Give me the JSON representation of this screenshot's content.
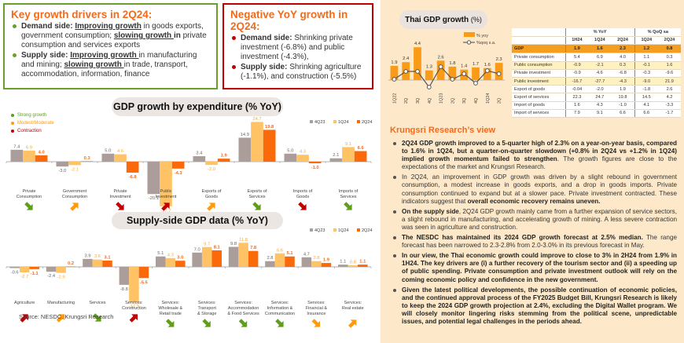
{
  "key_drivers": {
    "title": "Key growth drivers in 2Q24:",
    "items": [
      {
        "segments": [
          {
            "t": "Demand side: ",
            "s": "b"
          },
          {
            "t": "Improving growth",
            "s": "u"
          },
          {
            "t": " in goods exports, government consumption; ",
            "s": ""
          },
          {
            "t": "slowing growth ",
            "s": "u"
          },
          {
            "t": "in",
            "s": "b"
          },
          {
            "t": " private consumption and services exports",
            "s": ""
          }
        ]
      },
      {
        "segments": [
          {
            "t": "Supply side: ",
            "s": "b"
          },
          {
            "t": "Improving growth ",
            "s": "u"
          },
          {
            "t": "in manufacturing and mining; ",
            "s": ""
          },
          {
            "t": "slowing growth ",
            "s": "u"
          },
          {
            "t": "in trade, transport, accommodation, information, finance",
            "s": ""
          }
        ]
      }
    ]
  },
  "negative_growth": {
    "title": "Negative YoY growth in 2Q24:",
    "items": [
      {
        "segments": [
          {
            "t": "Demand side:",
            "s": "b"
          },
          {
            "t": " Shrinking private investment (-6.8%) and public investment (-4.3%),",
            "s": ""
          }
        ]
      },
      {
        "segments": [
          {
            "t": "Supply side:",
            "s": "b"
          },
          {
            "t": " Shrinking agriculture (-1.1%), and construction (-5.5%)",
            "s": ""
          }
        ]
      }
    ]
  },
  "colors": {
    "q4q23": "#ab9d99",
    "q1q24": "#ffc265",
    "q2q24": "#fa6a0a",
    "strong": "#5f9e16",
    "moderate": "#ff9a0d",
    "contraction": "#c00000",
    "gdp_bar": "#f99b16",
    "qoq_line": "#555555"
  },
  "momentum_legend": [
    {
      "label": "Strong growth",
      "level": "strong"
    },
    {
      "label": "Modest/Moderate",
      "level": "moderate"
    },
    {
      "label": "Contraction",
      "level": "contraction"
    }
  ],
  "source": "Source: NESDC, Krungsri Research",
  "chart_data": [
    {
      "type": "bar",
      "title": "GDP growth by expenditure (% YoY)",
      "legend_placement": "top-right",
      "series_names": [
        "4Q23",
        "1Q24",
        "2Q24"
      ],
      "categories": [
        "Private Consumption",
        "Government Consumption",
        "Private Investment",
        "Public Investment",
        "Exports of Goods",
        "Exports of Services",
        "Imports of Goods",
        "Imports of Services"
      ],
      "category_lines": [
        [
          "Private",
          "Consumption"
        ],
        [
          "Government",
          "Consumption"
        ],
        [
          "Private",
          "Investment"
        ],
        [
          "Public",
          "Investment"
        ],
        [
          "Exports of",
          "Goods"
        ],
        [
          "Exports of",
          "Services"
        ],
        [
          "Imports of",
          "Goods"
        ],
        [
          "Imports of",
          "Services"
        ]
      ],
      "series": [
        {
          "name": "4Q23",
          "values": [
            7.4,
            -3.0,
            5.0,
            -20.1,
            3.4,
            14.9,
            5.0,
            2.1
          ]
        },
        {
          "name": "1Q24",
          "values": [
            6.9,
            -2.1,
            4.6,
            -27.7,
            -2.0,
            24.7,
            4.3,
            9.1
          ]
        },
        {
          "name": "2Q24",
          "values": [
            4.0,
            0.3,
            -6.8,
            -4.3,
            1.9,
            19.8,
            -1.0,
            6.6
          ]
        }
      ],
      "hidden_labels": [
        [
          false,
          false,
          false
        ],
        [
          false,
          false,
          false
        ],
        [
          false,
          false,
          false
        ],
        [
          false,
          false,
          false
        ],
        [
          false,
          false,
          false
        ],
        [
          false,
          false,
          false
        ],
        [
          false,
          false,
          false
        ],
        [
          false,
          false,
          false
        ]
      ],
      "momentum": [
        {
          "level": "strong",
          "direction": "down"
        },
        {
          "level": "moderate",
          "direction": "up"
        },
        {
          "level": "contraction",
          "direction": "down"
        },
        {
          "level": "contraction",
          "direction": "up"
        },
        {
          "level": "moderate",
          "direction": "up"
        },
        {
          "level": "strong",
          "direction": "down"
        },
        {
          "level": "contraction",
          "direction": "down"
        },
        {
          "level": "strong",
          "direction": "down"
        }
      ],
      "ylim": [
        -28,
        25
      ]
    },
    {
      "type": "bar",
      "title": "Supply-side GDP data (% YoY)",
      "legend_placement": "top-right",
      "series_names": [
        "4Q23",
        "1Q24",
        "2Q24"
      ],
      "categories": [
        "Agriculture",
        "Manufacturing",
        "Services",
        "Services: Construction",
        "Services: Wholesale & Retail trade",
        "Services: Transport & Storage",
        "Services: Accommodation & Food Services",
        "Services: Information & Communication",
        "Services: Financial & Insurance",
        "Services: Real estate"
      ],
      "category_lines": [
        [
          "Agriculture"
        ],
        [
          "Manufacturing"
        ],
        [
          "Services"
        ],
        [
          "Services:",
          "Construction"
        ],
        [
          "Services:",
          "Wholesale &",
          "Retail trade"
        ],
        [
          "Services:",
          "Transport",
          "& Storage"
        ],
        [
          "Services:",
          "Accommodation",
          "& Food Services"
        ],
        [
          "Services:",
          "Information &",
          "Communication"
        ],
        [
          "Services:",
          "Financial &",
          "Insurance"
        ],
        [
          "Services:",
          "Real estate"
        ]
      ],
      "series": [
        {
          "name": "4Q23",
          "values": [
            -0.6,
            -2.4,
            3.9,
            -8.8,
            5.1,
            7.0,
            9.8,
            2.8,
            4.7,
            1.1
          ]
        },
        {
          "name": "1Q24",
          "values": [
            -2.7,
            -2.9,
            3.6,
            -17.3,
            4.3,
            9.7,
            11.8,
            6.6,
            2.8,
            0.8
          ]
        },
        {
          "name": "2Q24",
          "values": [
            -1.1,
            0.2,
            3.1,
            -5.5,
            3.0,
            8.1,
            7.8,
            5.1,
            1.9,
            1.1
          ]
        }
      ],
      "momentum": [
        {
          "level": "contraction",
          "direction": "up"
        },
        {
          "level": "moderate",
          "direction": "up"
        },
        {
          "level": "strong",
          "direction": "down"
        },
        {
          "level": "contraction",
          "direction": "up"
        },
        {
          "level": "strong",
          "direction": "down"
        },
        {
          "level": "strong",
          "direction": "down"
        },
        {
          "level": "strong",
          "direction": "down"
        },
        {
          "level": "strong",
          "direction": "down"
        },
        {
          "level": "moderate",
          "direction": "down"
        },
        {
          "level": "moderate",
          "direction": "up"
        }
      ],
      "ylim": [
        -18,
        12
      ]
    },
    {
      "type": "bar+line",
      "title": "Thai GDP growth",
      "title_unit": "(%)",
      "legend_placement": "top-right",
      "categories": [
        "1Q22",
        "2Q",
        "3Q",
        "4Q",
        "1Q23",
        "2Q",
        "3Q",
        "4Q",
        "1Q24",
        "2Q"
      ],
      "series": [
        {
          "name": "% yoy",
          "type": "bar",
          "values": [
            1.9,
            2.4,
            4.4,
            1.3,
            2.6,
            1.8,
            1.4,
            1.7,
            1.6,
            2.3
          ]
        },
        {
          "name": "%qoq s.a.",
          "type": "line",
          "values": [
            0.1,
            1.1,
            1.1,
            -0.9,
            1.7,
            0.1,
            0.8,
            -0.4,
            1.2,
            0.8
          ]
        }
      ],
      "ylim": [
        -1.5,
        5
      ]
    },
    {
      "type": "table",
      "group_headers": [
        "% YoY",
        "% QoQ sa"
      ],
      "columns": [
        "1H24",
        "1Q24",
        "2Q24",
        "1Q24",
        "2Q24"
      ],
      "rows": [
        {
          "label": "GDP",
          "values": [
            "1.9",
            "1.6",
            "2.3",
            "1.2",
            "0.8"
          ],
          "style": "gdp"
        },
        {
          "label": "Private consumption",
          "values": [
            "5.4",
            "6.9",
            "4.0",
            "1.1",
            "0.3"
          ],
          "style": ""
        },
        {
          "label": "Public consumption",
          "values": [
            "-0.9",
            "-2.1",
            "0.3",
            "-0.1",
            "1.6"
          ],
          "style": "alt"
        },
        {
          "label": "Private investment",
          "values": [
            "-0.9",
            "4.6",
            "-6.8",
            "-0.3",
            "-9.6"
          ],
          "style": ""
        },
        {
          "label": "Public investment",
          "values": [
            "-16.7",
            "-27.7",
            "-4.3",
            "-9.0",
            "21.9"
          ],
          "style": "alt"
        },
        {
          "label": "Export of goods",
          "values": [
            "-0.04",
            "-2.0",
            "1.9",
            "-1.8",
            "2.6"
          ],
          "style": ""
        },
        {
          "label": "Export of services",
          "values": [
            "22.3",
            "24.7",
            "19.8",
            "14.5",
            "4.2"
          ],
          "style": ""
        },
        {
          "label": "Import of goods",
          "values": [
            "1.6",
            "4.3",
            "-1.0",
            "4.1",
            "-3.3"
          ],
          "style": ""
        },
        {
          "label": "Import of services",
          "values": [
            "7.9",
            "9.1",
            "6.6",
            "6.6",
            "-1.7"
          ],
          "style": ""
        }
      ]
    }
  ],
  "research_view": {
    "title": "Krungsri Research’s view",
    "items": [
      {
        "segments": [
          {
            "t": "2Q24 GDP growth improved to a 5-quarter high of 2.3% on a year-on-year basis, compared to 1.6% in 1Q24, but a quarter-on-quarter slowdown (+0.8% in 2Q24 vs +1.2% in 1Q24) implied growth momentum failed to strengthen",
            "s": "b"
          },
          {
            "t": ". The growth figures are close to the expectations of the market and Krungsri Research.",
            "s": ""
          }
        ]
      },
      {
        "segments": [
          {
            "t": "In 2Q24, an improvement in GDP growth was driven by a slight rebound in government consumption, a modest increase in goods exports, and a drop in goods imports. Private consumption continued to expand but at a slower pace. Private investment contracted. These indicators suggest that ",
            "s": ""
          },
          {
            "t": "overall economic recovery remains uneven.",
            "s": "b"
          }
        ]
      },
      {
        "segments": [
          {
            "t": "On the supply side",
            "s": "b"
          },
          {
            "t": ", 2Q24 GDP growth mainly came from a further expansion of service sectors, a slight rebound in manufacturing, and accelerating growth of mining. A less severe contraction was seen in agriculture and construction.",
            "s": ""
          }
        ]
      },
      {
        "segments": [
          {
            "t": "The NESDC has maintained its 2024 GDP growth forecast at 2.5% median.",
            "s": "b"
          },
          {
            "t": " The range forecast has been narrowed to 2.3-2.8% from 2.0-3.0% in its previous forecast in May.",
            "s": ""
          }
        ]
      },
      {
        "segments": [
          {
            "t": "In our view, the Thai economic growth could improve to close to 3% in 2H24 from 1.9% in 1H24. The key drivers are (i) a further recovery of the tourism sector and (ii) a speeding up of public spending. Private consumption and private investment outlook will rely on the coming economic policy and confidence in the new government.",
            "s": "b"
          }
        ]
      },
      {
        "segments": [
          {
            "t": "Given the latest political developments, the possible continuation of economic policies, and the continued approval process of the FY2025 Budget Bill, Krungsri Research is likely to keep the 2024 GDP growth projection at 2.4%, excluding the Digital Wallet program. We will closely monitor lingering risks stemming from the political scene, unpredictable issues, and potential legal challenges in the periods ahead.",
            "s": "b"
          }
        ]
      }
    ]
  }
}
